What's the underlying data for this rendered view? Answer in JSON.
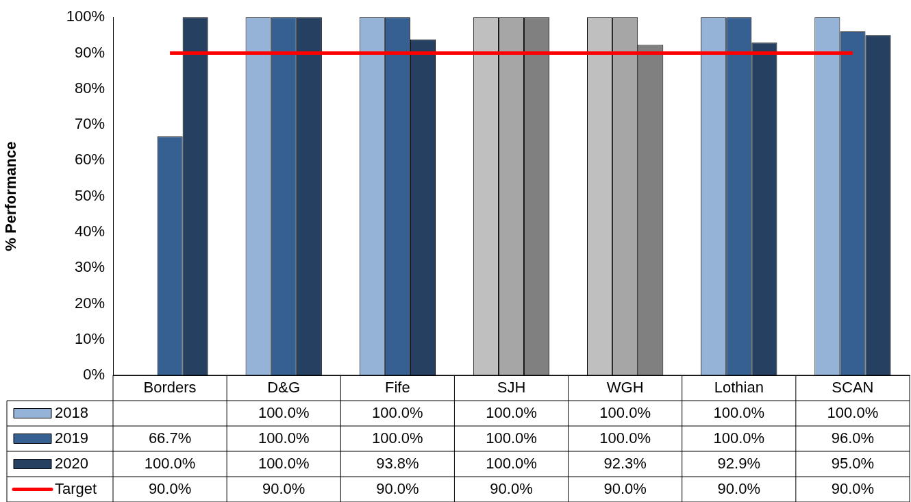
{
  "chart_data": {
    "type": "bar",
    "ylabel": "% Performance",
    "categories": [
      "Borders",
      "D&G",
      "Fife",
      "SJH",
      "WGH",
      "Lothian",
      "SCAN"
    ],
    "ylim": [
      0,
      100
    ],
    "yticks": [
      {
        "value": 0,
        "label": "0%"
      },
      {
        "value": 10,
        "label": "10%"
      },
      {
        "value": 20,
        "label": "20%"
      },
      {
        "value": 30,
        "label": "30%"
      },
      {
        "value": 40,
        "label": "40%"
      },
      {
        "value": 50,
        "label": "50%"
      },
      {
        "value": 60,
        "label": "60%"
      },
      {
        "value": 70,
        "label": "70%"
      },
      {
        "value": 80,
        "label": "80%"
      },
      {
        "value": 90,
        "label": "90%"
      },
      {
        "value": 100,
        "label": "100%"
      }
    ],
    "grid": false,
    "legend": "bottom left",
    "series": [
      {
        "name": "2018",
        "color": "#95b3d7",
        "colors": [
          "#95b3d7",
          "#95b3d7",
          "#95b3d7",
          "#bfbfbf",
          "#bfbfbf",
          "#95b3d7",
          "#95b3d7"
        ],
        "values": [
          null,
          100,
          100,
          100,
          100,
          100,
          100
        ],
        "value_labels": [
          null,
          "100.0%",
          "100.0%",
          "100.0%",
          "100.0%",
          "100.0%",
          "100.0%"
        ]
      },
      {
        "name": "2019",
        "color": "#366092",
        "colors": [
          "#366092",
          "#366092",
          "#366092",
          "#a6a6a6",
          "#a6a6a6",
          "#366092",
          "#366092"
        ],
        "values": [
          66.7,
          100,
          100,
          100,
          100,
          100,
          96
        ],
        "value_labels": [
          "66.7%",
          "100.0%",
          "100.0%",
          "100.0%",
          "100.0%",
          "100.0%",
          "96.0%"
        ]
      },
      {
        "name": "2020",
        "color": "#254061",
        "colors": [
          "#254061",
          "#254061",
          "#254061",
          "#808080",
          "#808080",
          "#254061",
          "#254061"
        ],
        "values": [
          100,
          100,
          93.8,
          100,
          92.3,
          92.9,
          95
        ],
        "value_labels": [
          "100.0%",
          "100.0%",
          "93.8%",
          "100.0%",
          "92.3%",
          "92.9%",
          "95.0%"
        ]
      },
      {
        "name": "Target",
        "type": "line",
        "color": "#ff0000",
        "values": [
          90,
          90,
          90,
          90,
          90,
          90,
          90
        ],
        "value_labels": [
          "90.0%",
          "90.0%",
          "90.0%",
          "90.0%",
          "90.0%",
          "90.0%",
          "90.0%"
        ]
      }
    ]
  }
}
